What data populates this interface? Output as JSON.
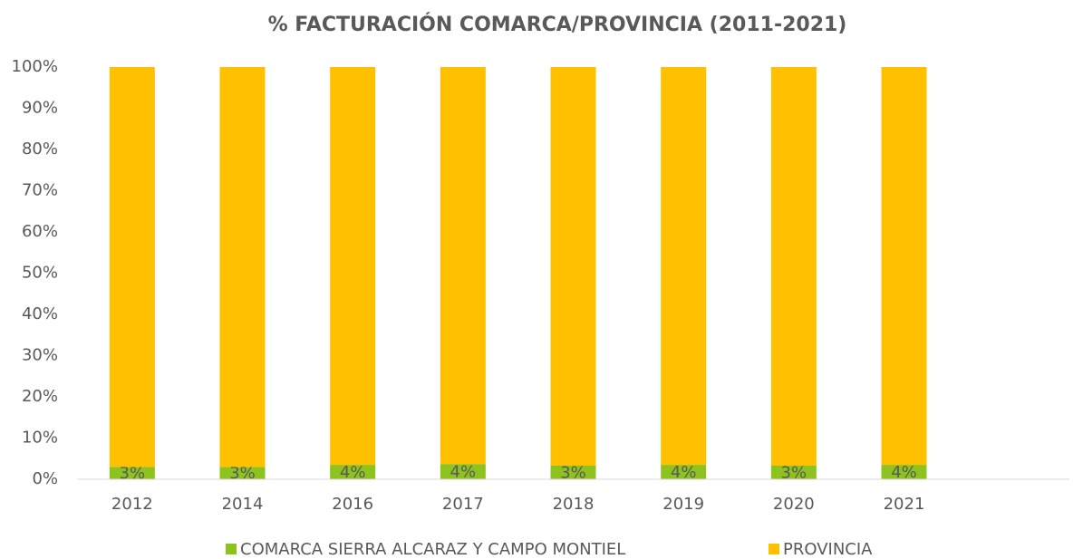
{
  "chart_data": {
    "type": "stacked_bar",
    "title": "% FACTURACIÓN COMARCA/PROVINCIA (2011-2021)",
    "categories": [
      "2012",
      "2014",
      "2016",
      "2017",
      "2018",
      "2019",
      "2020",
      "2021",
      null
    ],
    "series": [
      {
        "name": "COMARCA SIERRA ALCARAZ Y CAMPO MONTIEL",
        "color": "#8dc21f",
        "values": [
          3.0,
          3.0,
          3.5,
          3.7,
          3.3,
          3.5,
          3.3,
          3.5,
          null
        ],
        "value_labels": [
          "3%",
          "3%",
          "4%",
          "4%",
          "3%",
          "4%",
          "3%",
          "4%",
          null
        ]
      },
      {
        "name": "PROVINCIA",
        "color": "#ffc000",
        "values": [
          97.0,
          97.0,
          96.5,
          96.3,
          96.7,
          96.5,
          96.7,
          96.5,
          null
        ]
      }
    ],
    "ylim": [
      0,
      100
    ],
    "yticks": [
      {
        "value": 0,
        "label": "0%"
      },
      {
        "value": 10,
        "label": "10%"
      },
      {
        "value": 20,
        "label": "20%"
      },
      {
        "value": 30,
        "label": "30%"
      },
      {
        "value": 40,
        "label": "40%"
      },
      {
        "value": 50,
        "label": "50%"
      },
      {
        "value": 60,
        "label": "60%"
      },
      {
        "value": 70,
        "label": "70%"
      },
      {
        "value": 80,
        "label": "80%"
      },
      {
        "value": 90,
        "label": "90%"
      },
      {
        "value": 100,
        "label": "100%"
      }
    ],
    "grid": false,
    "legend": "bottom"
  }
}
